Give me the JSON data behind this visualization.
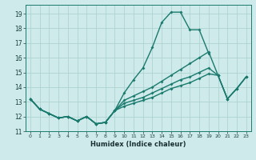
{
  "xlabel": "Humidex (Indice chaleur)",
  "xlim": [
    -0.5,
    23.5
  ],
  "ylim": [
    11,
    19.6
  ],
  "yticks": [
    11,
    12,
    13,
    14,
    15,
    16,
    17,
    18,
    19
  ],
  "xticks": [
    0,
    1,
    2,
    3,
    4,
    5,
    6,
    7,
    8,
    9,
    10,
    11,
    12,
    13,
    14,
    15,
    16,
    17,
    18,
    19,
    20,
    21,
    22,
    23
  ],
  "bg_color": "#ceeaea",
  "grid_color": "#aed4d2",
  "line_color": "#1a7a6e",
  "line_width": 1.0,
  "marker_size": 2.0,
  "series": [
    {
      "x": [
        0,
        1,
        2,
        3,
        4,
        5,
        6,
        7,
        8,
        9,
        10,
        11,
        12,
        13,
        14,
        15,
        16,
        17,
        18,
        19
      ],
      "y": [
        13.2,
        12.5,
        12.2,
        11.9,
        12.0,
        11.7,
        12.0,
        11.5,
        11.6,
        12.4,
        13.6,
        14.5,
        15.3,
        16.7,
        18.4,
        19.1,
        19.1,
        17.9,
        17.9,
        16.3
      ]
    },
    {
      "x": [
        0,
        1,
        2,
        3,
        4,
        5,
        6,
        7,
        8,
        9,
        10,
        11,
        12,
        13,
        14,
        15,
        16,
        17,
        18,
        19,
        20,
        21,
        22,
        23
      ],
      "y": [
        13.2,
        12.5,
        12.2,
        11.9,
        12.0,
        11.7,
        12.0,
        11.5,
        11.6,
        12.4,
        13.1,
        13.4,
        13.7,
        14.0,
        14.4,
        14.8,
        15.2,
        15.6,
        16.0,
        16.4,
        14.8,
        13.2,
        13.9,
        14.7
      ]
    },
    {
      "x": [
        0,
        1,
        2,
        3,
        4,
        5,
        6,
        7,
        8,
        9,
        10,
        11,
        12,
        13,
        14,
        15,
        16,
        17,
        18,
        19,
        20,
        21,
        22,
        23
      ],
      "y": [
        13.2,
        12.5,
        12.2,
        11.9,
        12.0,
        11.7,
        12.0,
        11.5,
        11.6,
        12.4,
        12.9,
        13.1,
        13.3,
        13.6,
        13.9,
        14.2,
        14.5,
        14.7,
        15.0,
        15.3,
        14.8,
        13.2,
        13.9,
        14.7
      ]
    },
    {
      "x": [
        0,
        1,
        2,
        3,
        4,
        5,
        6,
        7,
        8,
        9,
        10,
        11,
        12,
        13,
        14,
        15,
        16,
        17,
        18,
        19,
        20,
        21,
        22,
        23
      ],
      "y": [
        13.2,
        12.5,
        12.2,
        11.9,
        12.0,
        11.7,
        12.0,
        11.5,
        11.6,
        12.4,
        12.7,
        12.9,
        13.1,
        13.3,
        13.6,
        13.9,
        14.1,
        14.3,
        14.6,
        14.9,
        14.8,
        13.2,
        13.9,
        14.7
      ]
    }
  ]
}
